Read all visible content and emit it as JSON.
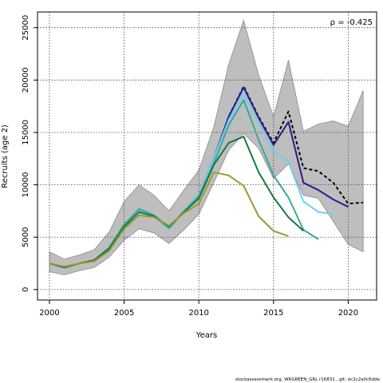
{
  "footer": "stockassessment.org, WKGREEN_GRL r16831 , git: ec2c2a0c6dde",
  "chart_data": {
    "type": "line",
    "title": "",
    "xlabel": "Years",
    "ylabel": "Recruits (age 2)",
    "annotation": "ρ = -0.425",
    "annotation_position": "top-right",
    "xlim": [
      1999.2,
      2021.9
    ],
    "ylim": [
      -1000,
      26500
    ],
    "xticks": [
      2000,
      2005,
      2010,
      2015,
      2020
    ],
    "yticks": [
      0,
      5000,
      10000,
      15000,
      20000,
      25000
    ],
    "grid": true,
    "confidence_band": {
      "x": [
        2000,
        2001,
        2002,
        2003,
        2004,
        2005,
        2006,
        2007,
        2008,
        2009,
        2010,
        2011,
        2012,
        2013,
        2014,
        2015,
        2016,
        2017,
        2018,
        2019,
        2020,
        2021
      ],
      "upper": [
        3600,
        2900,
        3300,
        3800,
        5500,
        8400,
        10000,
        9000,
        7500,
        9500,
        11400,
        15500,
        21500,
        25700,
        20500,
        16500,
        21900,
        15100,
        15800,
        16100,
        15600,
        19000
      ],
      "lower": [
        1700,
        1400,
        1800,
        2100,
        3100,
        4700,
        5800,
        5400,
        4400,
        5700,
        7200,
        10200,
        13300,
        14900,
        13500,
        10600,
        12000,
        9000,
        8700,
        6500,
        4300,
        3600
      ]
    },
    "series": [
      {
        "color": "#000000",
        "dashed": true,
        "x": [
          2000,
          2001,
          2002,
          2003,
          2004,
          2005,
          2006,
          2007,
          2008,
          2009,
          2010,
          2011,
          2012,
          2013,
          2014,
          2015,
          2016,
          2017,
          2018,
          2019,
          2020,
          2021
        ],
        "y": [
          2500,
          2100,
          2500,
          2800,
          4000,
          6200,
          7500,
          7000,
          5800,
          7500,
          9000,
          12500,
          16500,
          19400,
          16500,
          14000,
          17000,
          11600,
          11300,
          10200,
          8200,
          8300
        ]
      },
      {
        "color": "#2f1a8c",
        "dashed": false,
        "x": [
          2000,
          2001,
          2002,
          2003,
          2004,
          2005,
          2006,
          2007,
          2008,
          2009,
          2010,
          2011,
          2012,
          2013,
          2014,
          2015,
          2016,
          2017,
          2018,
          2019,
          2020
        ],
        "y": [
          2500,
          2100,
          2500,
          2800,
          4000,
          6200,
          7500,
          7000,
          5800,
          7500,
          9000,
          12500,
          16500,
          19300,
          16400,
          13800,
          16000,
          10200,
          9500,
          8600,
          7900
        ]
      },
      {
        "color": "#6dcff0",
        "dashed": false,
        "x": [
          2000,
          2001,
          2002,
          2003,
          2004,
          2005,
          2006,
          2007,
          2008,
          2009,
          2010,
          2011,
          2012,
          2013,
          2014,
          2015,
          2016,
          2017,
          2018,
          2019
        ],
        "y": [
          2500,
          2100,
          2500,
          2800,
          4000,
          6200,
          7500,
          7000,
          5800,
          7500,
          9000,
          12500,
          16200,
          18700,
          15900,
          13200,
          12200,
          8400,
          7400,
          7200
        ]
      },
      {
        "color": "#3aa79c",
        "dashed": false,
        "x": [
          2000,
          2001,
          2002,
          2003,
          2004,
          2005,
          2006,
          2007,
          2008,
          2009,
          2010,
          2011,
          2012,
          2013,
          2014,
          2015,
          2016,
          2017,
          2018
        ],
        "y": [
          2500,
          2100,
          2500,
          2800,
          4000,
          6200,
          7700,
          7100,
          5900,
          7400,
          8900,
          12000,
          15700,
          18100,
          14300,
          10900,
          8800,
          5700,
          4800
        ]
      },
      {
        "color": "#167a3a",
        "dashed": false,
        "x": [
          2000,
          2001,
          2002,
          2003,
          2004,
          2005,
          2006,
          2007,
          2008,
          2009,
          2010,
          2011,
          2012,
          2013,
          2014,
          2015,
          2016,
          2017
        ],
        "y": [
          2500,
          2100,
          2500,
          2800,
          3900,
          6000,
          7400,
          7000,
          6000,
          7400,
          8700,
          11900,
          14000,
          14600,
          11200,
          8800,
          6900,
          5600
        ]
      },
      {
        "color": "#9a9a30",
        "dashed": false,
        "x": [
          2000,
          2001,
          2002,
          2003,
          2004,
          2005,
          2006,
          2007,
          2008,
          2009,
          2010,
          2011,
          2012,
          2013,
          2014,
          2015,
          2016
        ],
        "y": [
          2500,
          2200,
          2500,
          2700,
          3700,
          5800,
          7100,
          6900,
          6100,
          7300,
          8200,
          11200,
          10900,
          9900,
          7000,
          5600,
          5100
        ]
      }
    ]
  }
}
